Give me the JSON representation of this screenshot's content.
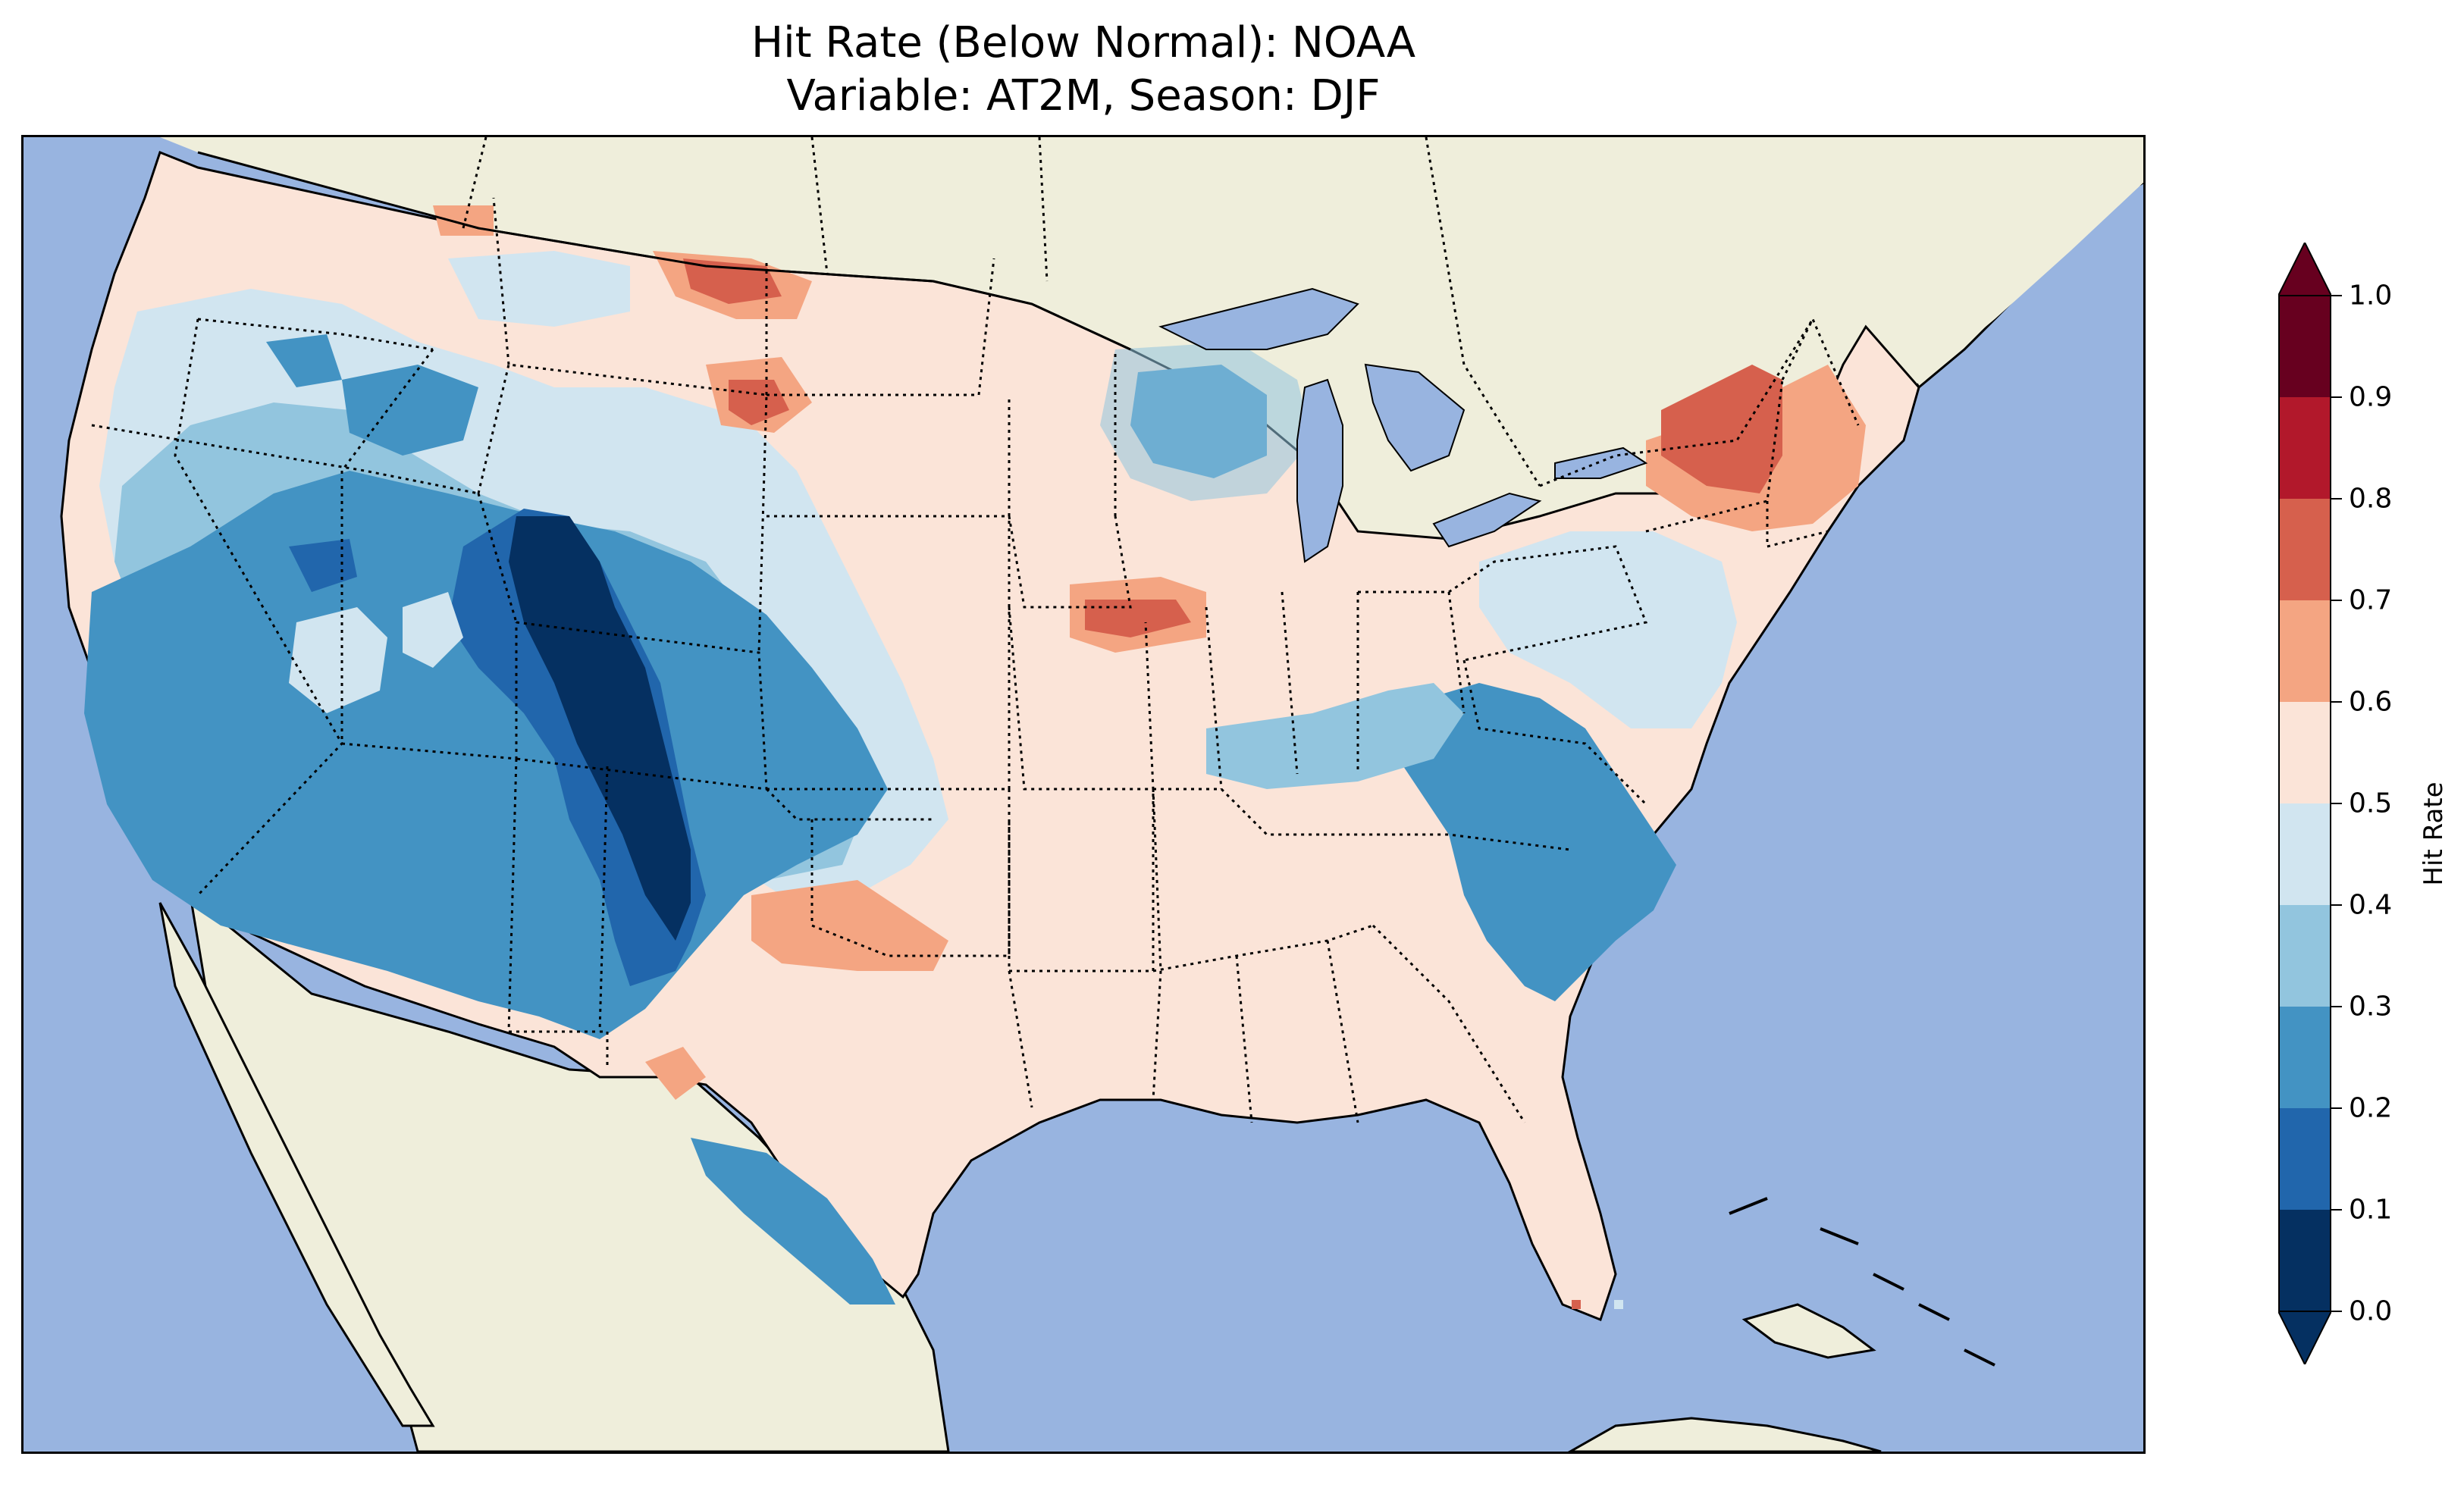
{
  "title_line1": "Hit Rate (Below Normal): NOAA",
  "title_line2": "Variable: AT2M, Season: DJF",
  "colors": {
    "ocean": "#98b4e0",
    "land": "#efeedb",
    "lake": "#98b4e0"
  },
  "colorbar": {
    "label": "Hit Rate",
    "ticks": [
      "0.0",
      "0.1",
      "0.2",
      "0.3",
      "0.4",
      "0.5",
      "0.6",
      "0.7",
      "0.8",
      "0.9",
      "1.0"
    ],
    "bin_colors": [
      "#053061",
      "#2166ac",
      "#4393c3",
      "#92c5de",
      "#d1e5f0",
      "#fbe4d8",
      "#f4a582",
      "#d6604d",
      "#b2182b",
      "#67001f"
    ],
    "extend": "both"
  },
  "map": {
    "region": "Continental United States",
    "colormap": "RdBu_r",
    "value_range": [
      0.0,
      1.0
    ]
  }
}
